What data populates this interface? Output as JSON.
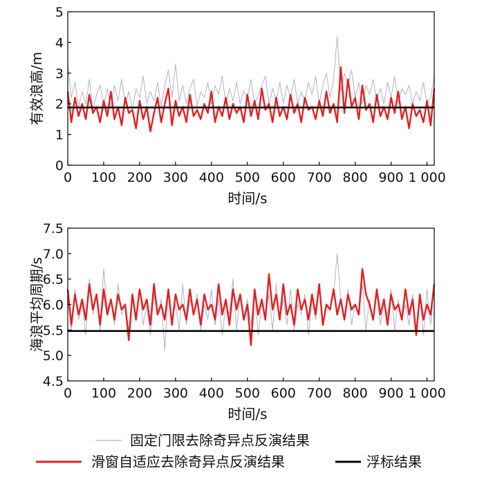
{
  "chart_data": [
    {
      "type": "line",
      "xlabel": "时间/s",
      "ylabel": "有效浪高/m",
      "xlim": [
        0,
        1020
      ],
      "ylim": [
        0,
        5
      ],
      "xticks": [
        0,
        100,
        200,
        300,
        400,
        500,
        600,
        700,
        800,
        900,
        1000
      ],
      "xtick_labels": [
        "0",
        "100",
        "200",
        "300",
        "400",
        "500",
        "600",
        "700",
        "800",
        "900",
        "1 000"
      ],
      "yticks": [
        0,
        1,
        2,
        3,
        4,
        5
      ],
      "ytick_labels": [
        "0",
        "1",
        "2",
        "3",
        "4",
        "5"
      ],
      "grid": false,
      "series": [
        {
          "name": "固定门限去除奇异点反演结果",
          "color": "#b3aecb",
          "x": [
            0,
            10,
            20,
            30,
            40,
            50,
            60,
            70,
            80,
            90,
            100,
            110,
            120,
            130,
            140,
            150,
            160,
            170,
            180,
            190,
            200,
            210,
            220,
            230,
            240,
            250,
            260,
            270,
            280,
            290,
            300,
            310,
            320,
            330,
            340,
            350,
            360,
            370,
            380,
            390,
            400,
            410,
            420,
            430,
            440,
            450,
            460,
            470,
            480,
            490,
            500,
            510,
            520,
            530,
            540,
            550,
            560,
            570,
            580,
            590,
            600,
            610,
            620,
            630,
            640,
            650,
            660,
            670,
            680,
            690,
            700,
            710,
            720,
            730,
            740,
            750,
            760,
            770,
            780,
            790,
            800,
            810,
            820,
            830,
            840,
            850,
            860,
            870,
            880,
            890,
            900,
            910,
            920,
            930,
            940,
            950,
            960,
            970,
            980,
            990,
            1000,
            1010,
            1020
          ],
          "values": [
            3.3,
            2.2,
            2.7,
            1.9,
            2.4,
            2.0,
            2.8,
            1.8,
            2.3,
            2.6,
            2.0,
            2.5,
            1.9,
            2.6,
            2.1,
            2.8,
            2.0,
            2.4,
            1.8,
            2.5,
            2.2,
            2.9,
            2.0,
            2.4,
            2.1,
            2.7,
            1.9,
            2.6,
            3.1,
            2.2,
            3.3,
            2.1,
            2.6,
            2.0,
            2.5,
            2.8,
            1.9,
            2.4,
            2.2,
            2.7,
            2.0,
            2.6,
            2.3,
            2.9,
            2.0,
            2.5,
            2.1,
            2.7,
            2.0,
            2.4,
            2.2,
            2.8,
            2.0,
            2.3,
            2.6,
            2.9,
            2.0,
            2.5,
            2.1,
            2.7,
            2.0,
            2.6,
            2.2,
            2.8,
            2.0,
            2.4,
            2.1,
            2.7,
            2.3,
            2.9,
            2.0,
            2.6,
            3.0,
            2.2,
            2.8,
            4.2,
            2.4,
            3.0,
            2.6,
            3.1,
            2.2,
            2.7,
            2.0,
            2.6,
            2.3,
            2.8,
            2.1,
            2.5,
            2.0,
            2.7,
            2.2,
            2.9,
            2.0,
            2.5,
            2.3,
            2.6,
            2.0,
            2.4,
            2.1,
            2.7,
            2.0,
            2.2,
            2.9
          ]
        },
        {
          "name": "滑窗自适应去除奇异点反演结果",
          "color": "#e02020",
          "x": [
            0,
            10,
            20,
            30,
            40,
            50,
            60,
            70,
            80,
            90,
            100,
            110,
            120,
            130,
            140,
            150,
            160,
            170,
            180,
            190,
            200,
            210,
            220,
            230,
            240,
            250,
            260,
            270,
            280,
            290,
            300,
            310,
            320,
            330,
            340,
            350,
            360,
            370,
            380,
            390,
            400,
            410,
            420,
            430,
            440,
            450,
            460,
            470,
            480,
            490,
            500,
            510,
            520,
            530,
            540,
            550,
            560,
            570,
            580,
            590,
            600,
            610,
            620,
            630,
            640,
            650,
            660,
            670,
            680,
            690,
            700,
            710,
            720,
            730,
            740,
            750,
            760,
            770,
            780,
            790,
            800,
            810,
            820,
            830,
            840,
            850,
            860,
            870,
            880,
            890,
            900,
            910,
            920,
            930,
            940,
            950,
            960,
            970,
            980,
            990,
            1000,
            1010,
            1020
          ],
          "values": [
            2.4,
            1.4,
            2.2,
            1.6,
            2.0,
            1.5,
            2.3,
            1.7,
            1.9,
            1.4,
            2.1,
            1.6,
            2.4,
            1.5,
            1.9,
            1.3,
            2.2,
            1.7,
            1.8,
            1.2,
            2.1,
            1.5,
            1.9,
            1.1,
            1.7,
            2.2,
            1.4,
            2.0,
            2.5,
            1.3,
            2.1,
            1.6,
            1.9,
            1.4,
            2.3,
            1.6,
            1.8,
            1.5,
            2.0,
            1.7,
            2.4,
            1.4,
            1.9,
            1.6,
            2.2,
            1.5,
            2.0,
            1.7,
            1.9,
            1.4,
            2.3,
            1.6,
            2.1,
            1.5,
            2.5,
            1.8,
            2.0,
            1.4,
            2.2,
            1.6,
            1.9,
            1.5,
            2.3,
            1.7,
            2.0,
            1.4,
            2.2,
            1.8,
            1.9,
            1.5,
            2.1,
            1.6,
            2.4,
            1.7,
            2.0,
            1.4,
            3.2,
            1.7,
            2.8,
            1.9,
            2.2,
            1.5,
            2.6,
            1.8,
            2.0,
            1.4,
            2.3,
            1.6,
            1.9,
            1.5,
            2.2,
            1.7,
            2.4,
            1.5,
            1.9,
            1.2,
            2.0,
            1.6,
            1.8,
            1.4,
            2.1,
            1.3,
            2.5
          ]
        },
        {
          "name": "浮标结果",
          "color": "#000000",
          "x": [
            0,
            1020
          ],
          "values": [
            1.88,
            1.88
          ]
        }
      ]
    },
    {
      "type": "line",
      "xlabel": "时间/s",
      "ylabel": "海浪平均周期/s",
      "xlim": [
        0,
        1020
      ],
      "ylim": [
        4.5,
        7.5
      ],
      "xticks": [
        0,
        100,
        200,
        300,
        400,
        500,
        600,
        700,
        800,
        900,
        1000
      ],
      "xtick_labels": [
        "0",
        "100",
        "200",
        "300",
        "400",
        "500",
        "600",
        "700",
        "800",
        "900",
        "1 000"
      ],
      "yticks": [
        4.5,
        5.0,
        5.5,
        6.0,
        6.5,
        7.0,
        7.5
      ],
      "ytick_labels": [
        "4.5",
        "5.0",
        "5.5",
        "6.0",
        "6.5",
        "7.0",
        "7.5"
      ],
      "grid": false,
      "series": [
        {
          "name": "固定门限去除奇异点反演结果",
          "color": "#b3aecb",
          "x": [
            0,
            10,
            20,
            30,
            40,
            50,
            60,
            70,
            80,
            90,
            100,
            110,
            120,
            130,
            140,
            150,
            160,
            170,
            180,
            190,
            200,
            210,
            220,
            230,
            240,
            250,
            260,
            270,
            280,
            290,
            300,
            310,
            320,
            330,
            340,
            350,
            360,
            370,
            380,
            390,
            400,
            410,
            420,
            430,
            440,
            450,
            460,
            470,
            480,
            490,
            500,
            510,
            520,
            530,
            540,
            550,
            560,
            570,
            580,
            590,
            600,
            610,
            620,
            630,
            640,
            650,
            660,
            670,
            680,
            690,
            700,
            710,
            720,
            730,
            740,
            750,
            760,
            770,
            780,
            790,
            800,
            810,
            820,
            830,
            840,
            850,
            860,
            870,
            880,
            890,
            900,
            910,
            920,
            930,
            940,
            950,
            960,
            970,
            980,
            990,
            1000,
            1010,
            1020
          ],
          "values": [
            6.1,
            5.5,
            6.3,
            5.7,
            6.0,
            5.4,
            6.5,
            5.8,
            6.2,
            5.5,
            6.7,
            5.9,
            6.1,
            5.6,
            6.4,
            5.8,
            6.0,
            5.5,
            6.2,
            5.7,
            6.3,
            5.6,
            6.0,
            5.4,
            6.2,
            5.8,
            6.1,
            5.1,
            6.3,
            5.7,
            6.0,
            5.5,
            6.4,
            5.6,
            6.1,
            5.8,
            6.2,
            5.5,
            6.0,
            5.7,
            6.3,
            5.6,
            6.1,
            5.4,
            6.0,
            5.8,
            6.5,
            5.5,
            6.2,
            5.7,
            6.1,
            5.6,
            6.3,
            5.4,
            6.0,
            5.8,
            6.2,
            5.5,
            6.4,
            5.7,
            6.1,
            5.6,
            6.3,
            5.5,
            6.0,
            5.8,
            6.2,
            5.4,
            6.1,
            5.7,
            6.3,
            5.6,
            6.0,
            5.9,
            6.2,
            7.0,
            6.1,
            5.7,
            6.3,
            5.6,
            6.0,
            5.8,
            6.4,
            5.5,
            6.1,
            5.7,
            6.2,
            5.6,
            6.0,
            5.8,
            6.3,
            5.5,
            6.1,
            5.7,
            6.0,
            5.6,
            6.2,
            5.5,
            6.1,
            5.4,
            6.3,
            5.6,
            6.4
          ]
        },
        {
          "name": "滑窗自适应去除奇异点反演结果",
          "color": "#e02020",
          "x": [
            0,
            10,
            20,
            30,
            40,
            50,
            60,
            70,
            80,
            90,
            100,
            110,
            120,
            130,
            140,
            150,
            160,
            170,
            180,
            190,
            200,
            210,
            220,
            230,
            240,
            250,
            260,
            270,
            280,
            290,
            300,
            310,
            320,
            330,
            340,
            350,
            360,
            370,
            380,
            390,
            400,
            410,
            420,
            430,
            440,
            450,
            460,
            470,
            480,
            490,
            500,
            510,
            520,
            530,
            540,
            550,
            560,
            570,
            580,
            590,
            600,
            610,
            620,
            630,
            640,
            650,
            660,
            670,
            680,
            690,
            700,
            710,
            720,
            730,
            740,
            750,
            760,
            770,
            780,
            790,
            800,
            810,
            820,
            830,
            840,
            850,
            860,
            870,
            880,
            890,
            900,
            910,
            920,
            930,
            940,
            950,
            960,
            970,
            980,
            990,
            1000,
            1010,
            1020
          ],
          "values": [
            6.3,
            5.6,
            6.2,
            5.8,
            6.1,
            5.7,
            6.4,
            5.9,
            6.2,
            5.6,
            6.3,
            5.8,
            6.1,
            5.7,
            6.2,
            5.9,
            6.0,
            5.3,
            6.2,
            5.7,
            6.3,
            5.9,
            6.1,
            5.6,
            6.4,
            5.8,
            6.0,
            5.7,
            6.3,
            5.6,
            6.2,
            5.9,
            6.0,
            5.7,
            6.3,
            5.8,
            6.1,
            5.6,
            6.2,
            5.9,
            6.0,
            5.7,
            6.4,
            5.8,
            6.1,
            5.6,
            6.3,
            5.9,
            6.2,
            5.7,
            6.0,
            5.2,
            6.3,
            5.8,
            6.1,
            5.7,
            6.6,
            5.9,
            6.2,
            5.7,
            6.4,
            5.8,
            6.0,
            5.6,
            6.3,
            5.9,
            6.1,
            5.7,
            6.2,
            5.8,
            6.4,
            5.6,
            6.0,
            5.9,
            6.3,
            5.8,
            6.1,
            5.7,
            6.2,
            5.9,
            6.0,
            5.8,
            6.7,
            6.2,
            6.0,
            5.7,
            6.3,
            5.8,
            6.1,
            5.6,
            6.2,
            5.9,
            6.0,
            5.7,
            6.3,
            5.8,
            6.1,
            5.4,
            6.2,
            5.7,
            6.0,
            5.8,
            6.4
          ]
        },
        {
          "name": "浮标结果",
          "color": "#000000",
          "x": [
            0,
            1020
          ],
          "values": [
            5.48,
            5.48
          ]
        }
      ]
    }
  ],
  "legend": {
    "items": [
      {
        "label": "固定门限去除奇异点反演结果",
        "color": "#b3aecb"
      },
      {
        "label": "滑窗自适应去除奇异点反演结果",
        "color": "#e02020"
      },
      {
        "label": "浮标结果",
        "color": "#000000"
      }
    ]
  }
}
